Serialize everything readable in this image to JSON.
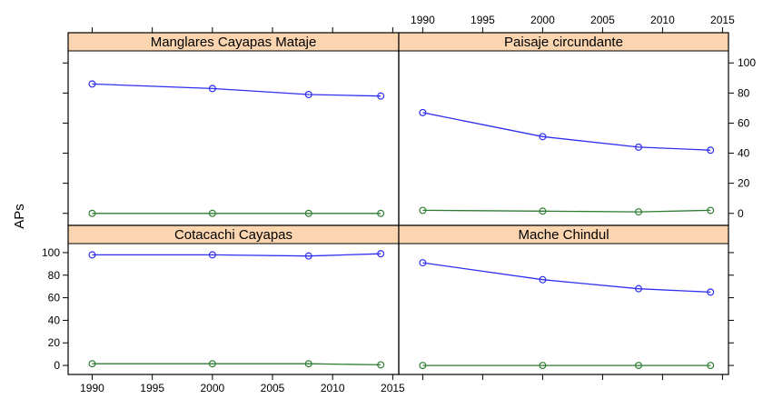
{
  "chart_data": {
    "type": "line",
    "layout": "lattice-2x2",
    "ylabel": "APs",
    "xlabel": "",
    "x": [
      1990,
      2000,
      2008,
      2014
    ],
    "xlim": [
      1988,
      2015.5
    ],
    "ylim": [
      -8,
      108
    ],
    "xticks": [
      1990,
      1995,
      2000,
      2005,
      2010,
      2015
    ],
    "yticks": [
      0,
      20,
      40,
      60,
      80,
      100
    ],
    "colors": {
      "upper_series": "#2f2ff0",
      "lower_series": "#2e7d32",
      "strip": "#fad5b0"
    },
    "panels": [
      {
        "title": "Manglares Cayapas Mataje",
        "position": "top-left",
        "series": [
          {
            "values": [
              86,
              83,
              79,
              78
            ]
          },
          {
            "values": [
              0,
              0,
              0,
              0
            ]
          }
        ]
      },
      {
        "title": "Paisaje circundante",
        "position": "top-right",
        "series": [
          {
            "values": [
              67,
              51,
              44,
              42
            ]
          },
          {
            "values": [
              2,
              1.5,
              1,
              2
            ]
          }
        ]
      },
      {
        "title": "Cotacachi Cayapas",
        "position": "bottom-left",
        "series": [
          {
            "values": [
              98,
              98,
              97,
              99
            ]
          },
          {
            "values": [
              1.5,
              1.5,
              1.5,
              0.5
            ]
          }
        ]
      },
      {
        "title": "Mache Chindul",
        "position": "bottom-right",
        "series": [
          {
            "values": [
              91,
              76,
              68,
              65
            ]
          },
          {
            "values": [
              0,
              0,
              0,
              0
            ]
          }
        ]
      }
    ]
  }
}
